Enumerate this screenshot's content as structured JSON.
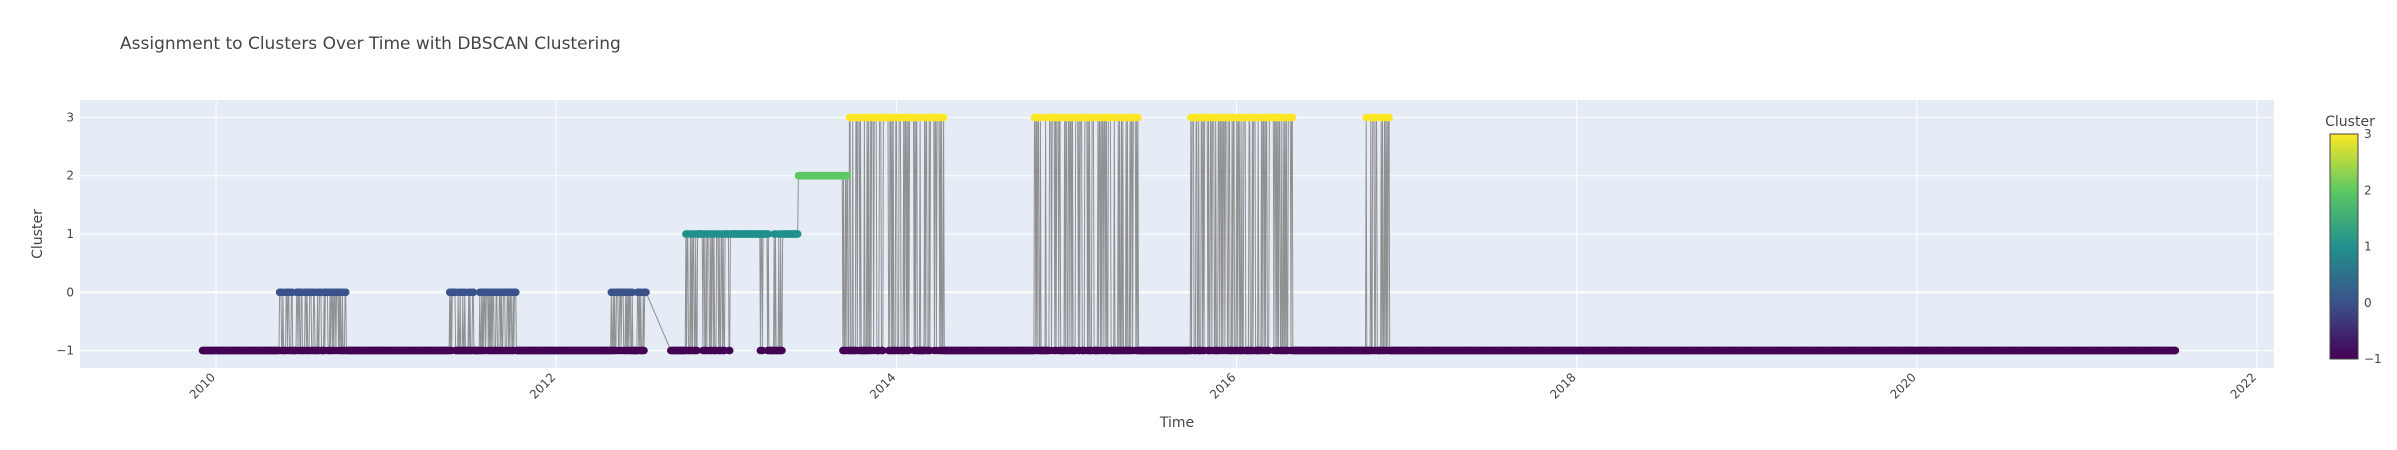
{
  "chart_data": {
    "type": "scatter",
    "title": "Assignment to Clusters Over Time with DBSCAN Clustering",
    "xlabel": "Time",
    "ylabel": "Cluster",
    "xlim": [
      2009.2,
      2022.1
    ],
    "ylim": [
      -1.3,
      3.3
    ],
    "x_ticks": [
      2010,
      2012,
      2014,
      2016,
      2018,
      2020,
      2022
    ],
    "y_ticks": [
      -1,
      0,
      1,
      2,
      3
    ],
    "y_tick_labels": [
      "−1",
      "0",
      "1",
      "2",
      "3"
    ],
    "grid": true,
    "plot_bgcolor": "#E5ECF6",
    "line_color": "#808080",
    "colorscale": "Viridis",
    "colorscale_stops": [
      "#440154",
      "#3b528b",
      "#21908d",
      "#5dc963",
      "#fde725"
    ],
    "cluster_colors": {
      "-1": "#440154",
      "0": "#3b528b",
      "1": "#21908d",
      "2": "#5dc963",
      "3": "#fde725"
    },
    "colorbar": {
      "title": "Cluster",
      "range": [
        -1,
        3
      ],
      "ticks": [
        -1,
        0,
        1,
        2,
        3
      ],
      "tick_labels": [
        "−1",
        "0",
        "1",
        "2",
        "3"
      ]
    },
    "noise_spans": [
      [
        2009.92,
        2012.53
      ],
      [
        2012.67,
        2012.83
      ],
      [
        2012.86,
        2013.02
      ],
      [
        2013.2,
        2013.33
      ],
      [
        2013.68,
        2014.58
      ],
      [
        2014.58,
        2021.52
      ]
    ],
    "cluster_spans": [
      {
        "cluster": 0,
        "x0": 2010.37,
        "x1": 2010.77
      },
      {
        "cluster": 0,
        "x0": 2011.37,
        "x1": 2011.77
      },
      {
        "cluster": 0,
        "x0": 2012.32,
        "x1": 2012.53
      },
      {
        "cluster": 1,
        "x0": 2012.76,
        "x1": 2013.42
      },
      {
        "cluster": 2,
        "x0": 2013.42,
        "x1": 2013.72
      },
      {
        "cluster": 3,
        "x0": 2013.72,
        "x1": 2014.28
      },
      {
        "cluster": 3,
        "x0": 2014.8,
        "x1": 2015.42
      },
      {
        "cluster": 3,
        "x0": 2015.73,
        "x1": 2016.33
      },
      {
        "cluster": 3,
        "x0": 2016.76,
        "x1": 2016.9
      }
    ]
  }
}
